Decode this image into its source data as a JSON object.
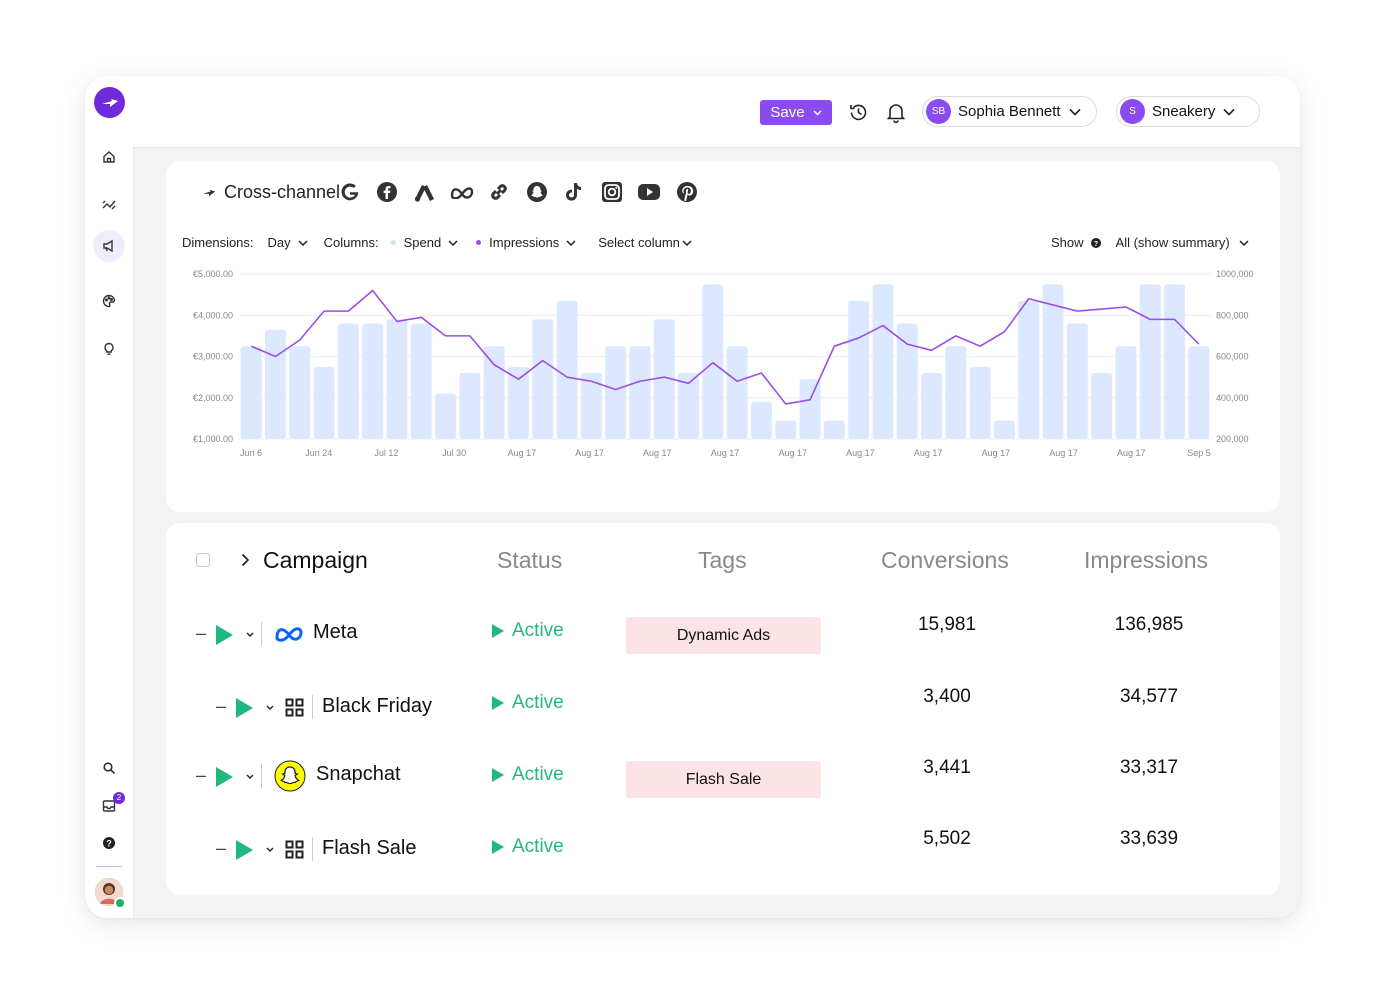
{
  "topbar": {
    "save_label": "Save",
    "user": {
      "initials": "SB",
      "name": "Sophia Bennett"
    },
    "workspace": {
      "initial": "S",
      "name": "Sneakery"
    }
  },
  "sidebar": {
    "items": [
      "home-icon",
      "analytics-icon",
      "campaigns-icon",
      "palette-icon",
      "lightbulb-icon"
    ],
    "bottom_items": [
      "search-icon",
      "inbox-icon",
      "help-icon"
    ],
    "inbox_badge": "2"
  },
  "chart_card": {
    "title": "Cross-channel",
    "channels": [
      "google",
      "facebook",
      "google-ads",
      "meta",
      "link",
      "snapchat",
      "tiktok",
      "instagram",
      "youtube",
      "pinterest"
    ],
    "filters": {
      "dimensions_label": "Dimensions:",
      "dimension_value": "Day",
      "columns_label": "Columns:",
      "column1": "Spend",
      "column2": "Impressions",
      "select_column": "Select column",
      "show_label": "Show",
      "show_value": "All (show summary)"
    }
  },
  "chart_data": {
    "type": "bar",
    "x_tick_labels": [
      "Jun 6",
      "Jun 24",
      "Jul 12",
      "Jul 30",
      "Aug 17",
      "Aug 17",
      "Aug 17",
      "Aug 17",
      "Aug 17",
      "Aug 17",
      "Aug 17",
      "Aug 17",
      "Aug 17",
      "Aug 17",
      "Sep 5"
    ],
    "y_left_ticks": [
      "€5,000.00",
      "€4,000.00",
      "€3,000.00",
      "€2,000.00",
      "€1,000.00"
    ],
    "y_right_ticks": [
      "1000,000",
      "800,000",
      "600,000",
      "400,000",
      "200,000"
    ],
    "ylim_left": [
      1000,
      5000
    ],
    "ylim_right": [
      200000,
      1000000
    ],
    "grid": true,
    "series": [
      {
        "name": "Spend",
        "type": "bar",
        "axis": "left",
        "color": "#dbe8ff",
        "values": [
          3250,
          3650,
          3250,
          2750,
          3800,
          3800,
          3900,
          3800,
          2100,
          2600,
          3250,
          2750,
          3900,
          4350,
          2600,
          3250,
          3250,
          3900,
          2600,
          4750,
          3250,
          1900,
          1450,
          2450,
          1450,
          4350,
          4750,
          3800,
          2600,
          3250,
          2750,
          1450,
          4350,
          4750,
          3800,
          2600,
          3250,
          4750,
          4750,
          3250
        ]
      },
      {
        "name": "Impressions",
        "type": "line",
        "axis": "right",
        "color": "#9b4de6",
        "values": [
          650000,
          600000,
          680000,
          820000,
          820000,
          920000,
          770000,
          790000,
          700000,
          700000,
          560000,
          490000,
          580000,
          500000,
          480000,
          440000,
          480000,
          500000,
          470000,
          570000,
          480000,
          520000,
          370000,
          390000,
          650000,
          690000,
          750000,
          660000,
          630000,
          700000,
          650000,
          720000,
          880000,
          850000,
          820000,
          830000,
          840000,
          780000,
          780000,
          660000
        ]
      }
    ]
  },
  "table": {
    "headers": {
      "campaign": "Campaign",
      "status": "Status",
      "tags": "Tags",
      "conversions": "Conversions",
      "impressions": "Impressions"
    },
    "rows": [
      {
        "name": "Meta",
        "status": "Active",
        "tag": "Dynamic Ads",
        "conversions": "15,981",
        "impressions": "136,985"
      },
      {
        "name": "Black Friday",
        "status": "Active",
        "tag": "",
        "conversions": "3,400",
        "impressions": "34,577"
      },
      {
        "name": "Snapchat",
        "status": "Active",
        "tag": "Flash Sale",
        "conversions": "3,441",
        "impressions": "33,317"
      },
      {
        "name": "Flash Sale",
        "status": "Active",
        "tag": "",
        "conversions": "5,502",
        "impressions": "33,639"
      }
    ]
  },
  "colors": {
    "accent": "#8a4cf0",
    "brand": "#6f2bd9",
    "active": "#1fb87f",
    "tag_bg": "#fce4e6",
    "bar": "#dbe8ff",
    "line": "#9b4de6"
  }
}
